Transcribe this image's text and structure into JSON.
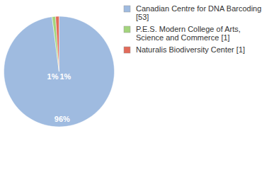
{
  "chart_data": {
    "type": "pie",
    "categories": [
      "Canadian Centre for DNA Barcoding [53]",
      "P.E.S. Modern College of Arts, Science and Commerce [1]",
      "Naturalis Biodiversity Center [1]"
    ],
    "values": [
      96,
      1,
      1
    ],
    "value_labels": [
      "96%",
      "1%",
      "1%"
    ],
    "colors": [
      "#9fbbe0",
      "#a3d47c",
      "#e26b5a"
    ],
    "data_labels": true,
    "legend": "top-right"
  }
}
